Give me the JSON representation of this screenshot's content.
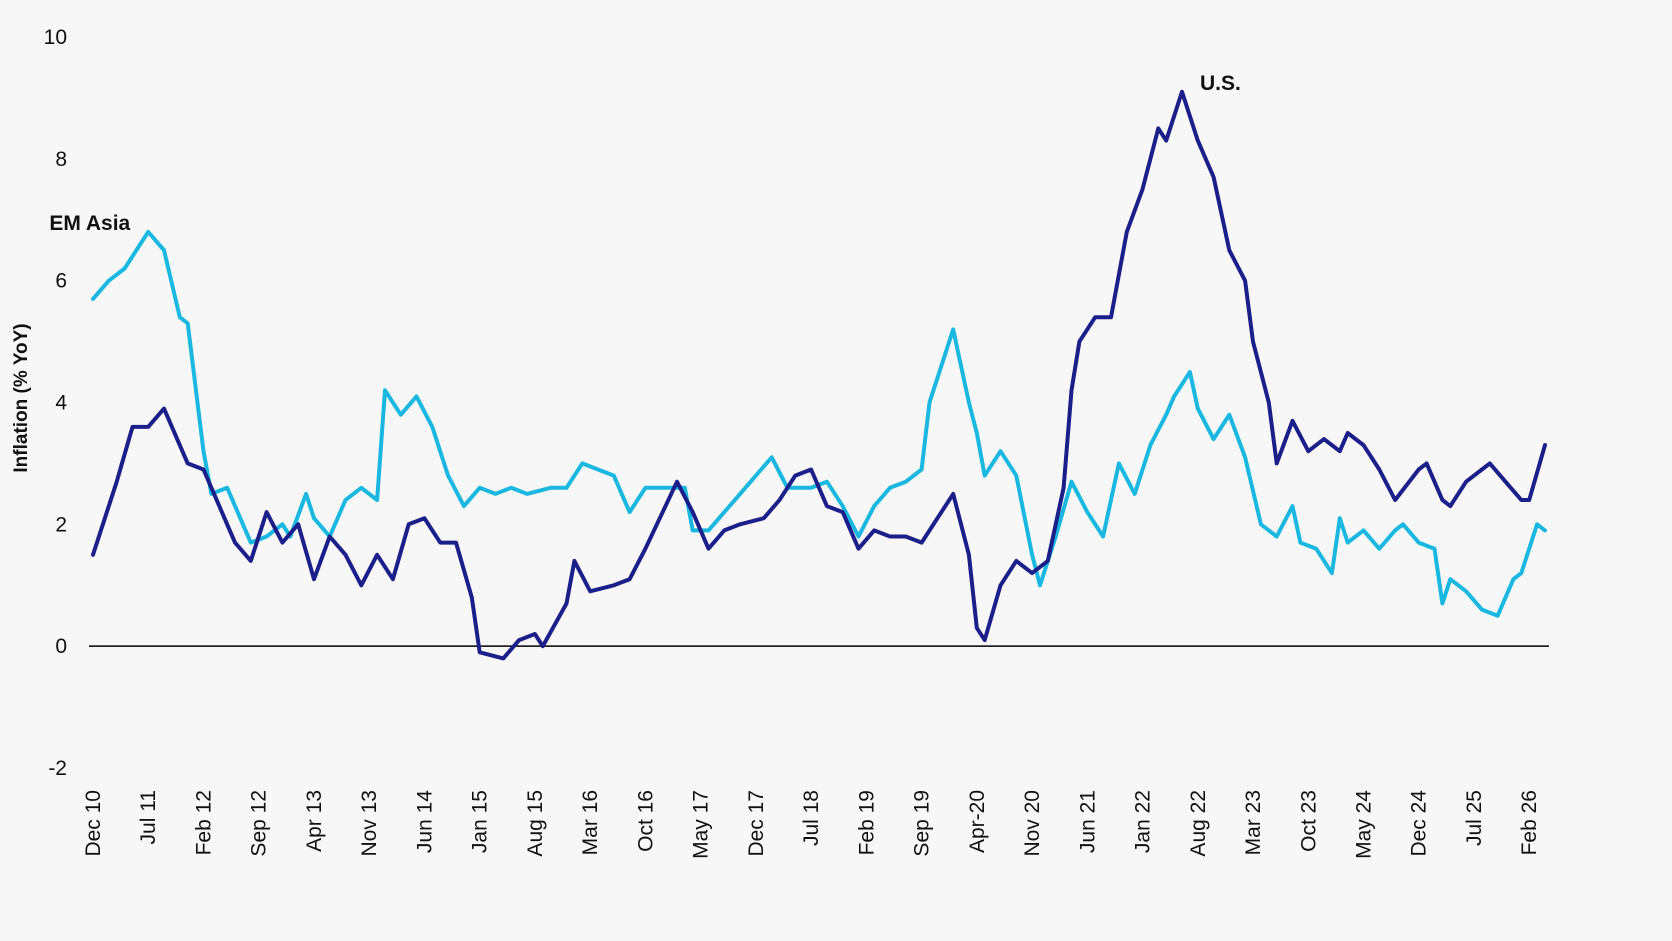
{
  "chart_data": {
    "type": "line",
    "ylabel": "Inflation (% YoY)",
    "ylim": [
      -2,
      10
    ],
    "yticks": [
      10,
      8,
      6,
      4,
      2,
      0,
      -2
    ],
    "x_start": "Dec 10",
    "x_end": "Apr 26",
    "x_tick_labels": [
      "Dec 10",
      "Jul 11",
      "Feb 12",
      "Sep 12",
      "Apr 13",
      "Nov 13",
      "Jun 14",
      "Jan 15",
      "Aug 15",
      "Mar 16",
      "Oct 16",
      "May 17",
      "Dec 17",
      "Jul 18",
      "Feb 19",
      "Sep 19",
      "Apr-20",
      "Nov 20",
      "Jun 21",
      "Jan 22",
      "Aug 22",
      "Mar 23",
      "Oct 23",
      "May 24",
      "Dec 24",
      "Jul 25",
      "Feb 26"
    ],
    "grid": false,
    "zero_line": true,
    "colors": {
      "U.S.": "#1b1f8a",
      "EM Asia": "#1ab8e0",
      "zero_line": "#000000"
    },
    "series": [
      {
        "name": "U.S.",
        "label": "U.S.",
        "points": [
          [
            "Dec 10",
            1.5
          ],
          [
            "Mar 11",
            2.7
          ],
          [
            "May 11",
            3.6
          ],
          [
            "Jul 11",
            3.6
          ],
          [
            "Sep 11",
            3.9
          ],
          [
            "Dec 11",
            3.0
          ],
          [
            "Feb 12",
            2.9
          ],
          [
            "Apr 12",
            2.3
          ],
          [
            "Jun 12",
            1.7
          ],
          [
            "Aug 12",
            1.4
          ],
          [
            "Oct 12",
            2.2
          ],
          [
            "Dec 12",
            1.7
          ],
          [
            "Feb 13",
            2.0
          ],
          [
            "Apr 13",
            1.1
          ],
          [
            "Jun 13",
            1.8
          ],
          [
            "Aug 13",
            1.5
          ],
          [
            "Oct 13",
            1.0
          ],
          [
            "Dec 13",
            1.5
          ],
          [
            "Feb 14",
            1.1
          ],
          [
            "Apr 14",
            2.0
          ],
          [
            "Jun 14",
            2.1
          ],
          [
            "Aug 14",
            1.7
          ],
          [
            "Oct 14",
            1.7
          ],
          [
            "Dec 14",
            0.8
          ],
          [
            "Jan 15",
            -0.1
          ],
          [
            "Apr 15",
            -0.2
          ],
          [
            "Jun 15",
            0.1
          ],
          [
            "Aug 15",
            0.2
          ],
          [
            "Sep 15",
            0.0
          ],
          [
            "Dec 15",
            0.7
          ],
          [
            "Jan 16",
            1.4
          ],
          [
            "Mar 16",
            0.9
          ],
          [
            "Jun 16",
            1.0
          ],
          [
            "Aug 16",
            1.1
          ],
          [
            "Oct 16",
            1.6
          ],
          [
            "Feb 17",
            2.7
          ],
          [
            "Apr 17",
            2.2
          ],
          [
            "Jun 17",
            1.6
          ],
          [
            "Aug 17",
            1.9
          ],
          [
            "Oct 17",
            2.0
          ],
          [
            "Jan 18",
            2.1
          ],
          [
            "Mar 18",
            2.4
          ],
          [
            "May 18",
            2.8
          ],
          [
            "Jul 18",
            2.9
          ],
          [
            "Sep 18",
            2.3
          ],
          [
            "Nov 18",
            2.2
          ],
          [
            "Jan 19",
            1.6
          ],
          [
            "Mar 19",
            1.9
          ],
          [
            "May 19",
            1.8
          ],
          [
            "Jul 19",
            1.8
          ],
          [
            "Sep 19",
            1.7
          ],
          [
            "Dec 19",
            2.3
          ],
          [
            "Jan 20",
            2.5
          ],
          [
            "Mar 20",
            1.5
          ],
          [
            "Apr-20",
            0.3
          ],
          [
            "May 20",
            0.1
          ],
          [
            "Jul 20",
            1.0
          ],
          [
            "Sep 20",
            1.4
          ],
          [
            "Nov 20",
            1.2
          ],
          [
            "Jan 21",
            1.4
          ],
          [
            "Mar 21",
            2.6
          ],
          [
            "Apr 21",
            4.2
          ],
          [
            "May 21",
            5.0
          ],
          [
            "Jul 21",
            5.4
          ],
          [
            "Sep 21",
            5.4
          ],
          [
            "Nov 21",
            6.8
          ],
          [
            "Jan 22",
            7.5
          ],
          [
            "Mar 22",
            8.5
          ],
          [
            "Apr 22",
            8.3
          ],
          [
            "Jun 22",
            9.1
          ],
          [
            "Aug 22",
            8.3
          ],
          [
            "Oct 22",
            7.7
          ],
          [
            "Dec 22",
            6.5
          ],
          [
            "Feb 23",
            6.0
          ],
          [
            "Mar 23",
            5.0
          ],
          [
            "May 23",
            4.0
          ],
          [
            "Jun 23",
            3.0
          ],
          [
            "Aug 23",
            3.7
          ],
          [
            "Oct 23",
            3.2
          ],
          [
            "Dec 23",
            3.4
          ],
          [
            "Feb 24",
            3.2
          ],
          [
            "Mar 24",
            3.5
          ],
          [
            "May 24",
            3.3
          ],
          [
            "Jul 24",
            2.9
          ],
          [
            "Sep 24",
            2.4
          ],
          [
            "Dec 24",
            2.9
          ],
          [
            "Jan 25",
            3.0
          ],
          [
            "Mar 25",
            2.4
          ],
          [
            "Apr 25",
            2.3
          ],
          [
            "Jun 25",
            2.7
          ],
          [
            "Aug 25",
            2.9
          ],
          [
            "Sep 25",
            3.0
          ],
          [
            "Nov 25",
            2.7
          ],
          [
            "Jan 26",
            2.4
          ],
          [
            "Feb 26",
            2.4
          ],
          [
            "Apr 26",
            3.3
          ]
        ]
      },
      {
        "name": "EM Asia",
        "label": "EM Asia",
        "points": [
          [
            "Dec 10",
            5.7
          ],
          [
            "Feb 11",
            6.0
          ],
          [
            "Apr 11",
            6.2
          ],
          [
            "Jul 11",
            6.8
          ],
          [
            "Sep 11",
            6.5
          ],
          [
            "Nov 11",
            5.4
          ],
          [
            "Dec 11",
            5.3
          ],
          [
            "Feb 12",
            3.2
          ],
          [
            "Mar 12",
            2.5
          ],
          [
            "May 12",
            2.6
          ],
          [
            "Jul 12",
            2.0
          ],
          [
            "Aug 12",
            1.7
          ],
          [
            "Oct 12",
            1.8
          ],
          [
            "Dec 12",
            2.0
          ],
          [
            "Jan 13",
            1.8
          ],
          [
            "Mar 13",
            2.5
          ],
          [
            "Apr 13",
            2.1
          ],
          [
            "Jun 13",
            1.8
          ],
          [
            "Aug 13",
            2.4
          ],
          [
            "Oct 13",
            2.6
          ],
          [
            "Dec 13",
            2.4
          ],
          [
            "Jan 14",
            4.2
          ],
          [
            "Mar 14",
            3.8
          ],
          [
            "May 14",
            4.1
          ],
          [
            "Jul 14",
            3.6
          ],
          [
            "Sep 14",
            2.8
          ],
          [
            "Nov 14",
            2.3
          ],
          [
            "Jan 15",
            2.6
          ],
          [
            "Mar 15",
            2.5
          ],
          [
            "May 15",
            2.6
          ],
          [
            "Jul 15",
            2.5
          ],
          [
            "Oct 15",
            2.6
          ],
          [
            "Dec 15",
            2.6
          ],
          [
            "Feb 16",
            3.0
          ],
          [
            "Apr 16",
            2.9
          ],
          [
            "Jun 16",
            2.8
          ],
          [
            "Aug 16",
            2.2
          ],
          [
            "Oct 16",
            2.6
          ],
          [
            "Jan 17",
            2.6
          ],
          [
            "Mar 17",
            2.6
          ],
          [
            "Apr 17",
            1.9
          ],
          [
            "Jun 17",
            1.9
          ],
          [
            "Aug 17",
            2.2
          ],
          [
            "Oct 17",
            2.5
          ],
          [
            "Dec 17",
            2.8
          ],
          [
            "Feb 18",
            3.1
          ],
          [
            "Apr 18",
            2.6
          ],
          [
            "Jul 18",
            2.6
          ],
          [
            "Sep 18",
            2.7
          ],
          [
            "Nov 18",
            2.3
          ],
          [
            "Jan 19",
            1.8
          ],
          [
            "Mar 19",
            2.3
          ],
          [
            "May 19",
            2.6
          ],
          [
            "Jul 19",
            2.7
          ],
          [
            "Sep 19",
            2.9
          ],
          [
            "Oct 19",
            4.0
          ],
          [
            "Dec 19",
            4.8
          ],
          [
            "Jan 20",
            5.2
          ],
          [
            "Mar 20",
            4.0
          ],
          [
            "Apr-20",
            3.5
          ],
          [
            "May 20",
            2.8
          ],
          [
            "Jul 20",
            3.2
          ],
          [
            "Sep 20",
            2.8
          ],
          [
            "Nov 20",
            1.5
          ],
          [
            "Dec 20",
            1.0
          ],
          [
            "Feb 21",
            1.8
          ],
          [
            "Apr 21",
            2.7
          ],
          [
            "Jun 21",
            2.2
          ],
          [
            "Aug 21",
            1.8
          ],
          [
            "Oct 21",
            3.0
          ],
          [
            "Dec 21",
            2.5
          ],
          [
            "Feb 22",
            3.3
          ],
          [
            "Apr 22",
            3.8
          ],
          [
            "May 22",
            4.1
          ],
          [
            "Jul 22",
            4.5
          ],
          [
            "Aug 22",
            3.9
          ],
          [
            "Oct 22",
            3.4
          ],
          [
            "Dec 22",
            3.8
          ],
          [
            "Feb 23",
            3.1
          ],
          [
            "Apr 23",
            2.0
          ],
          [
            "Jun 23",
            1.8
          ],
          [
            "Aug 23",
            2.3
          ],
          [
            "Sep 23",
            1.7
          ],
          [
            "Nov 23",
            1.6
          ],
          [
            "Jan 24",
            1.2
          ],
          [
            "Feb 24",
            2.1
          ],
          [
            "Mar 24",
            1.7
          ],
          [
            "May 24",
            1.9
          ],
          [
            "Jul 24",
            1.6
          ],
          [
            "Sep 24",
            1.9
          ],
          [
            "Oct 24",
            2.0
          ],
          [
            "Dec 24",
            1.7
          ],
          [
            "Feb 25",
            1.6
          ],
          [
            "Mar 25",
            0.7
          ],
          [
            "Apr 25",
            1.1
          ],
          [
            "Jun 25",
            0.9
          ],
          [
            "Aug 25",
            0.6
          ],
          [
            "Oct 25",
            0.5
          ],
          [
            "Dec 25",
            1.1
          ],
          [
            "Jan 26",
            1.2
          ],
          [
            "Mar 26",
            2.0
          ],
          [
            "Apr 26",
            1.9
          ]
        ]
      }
    ]
  }
}
